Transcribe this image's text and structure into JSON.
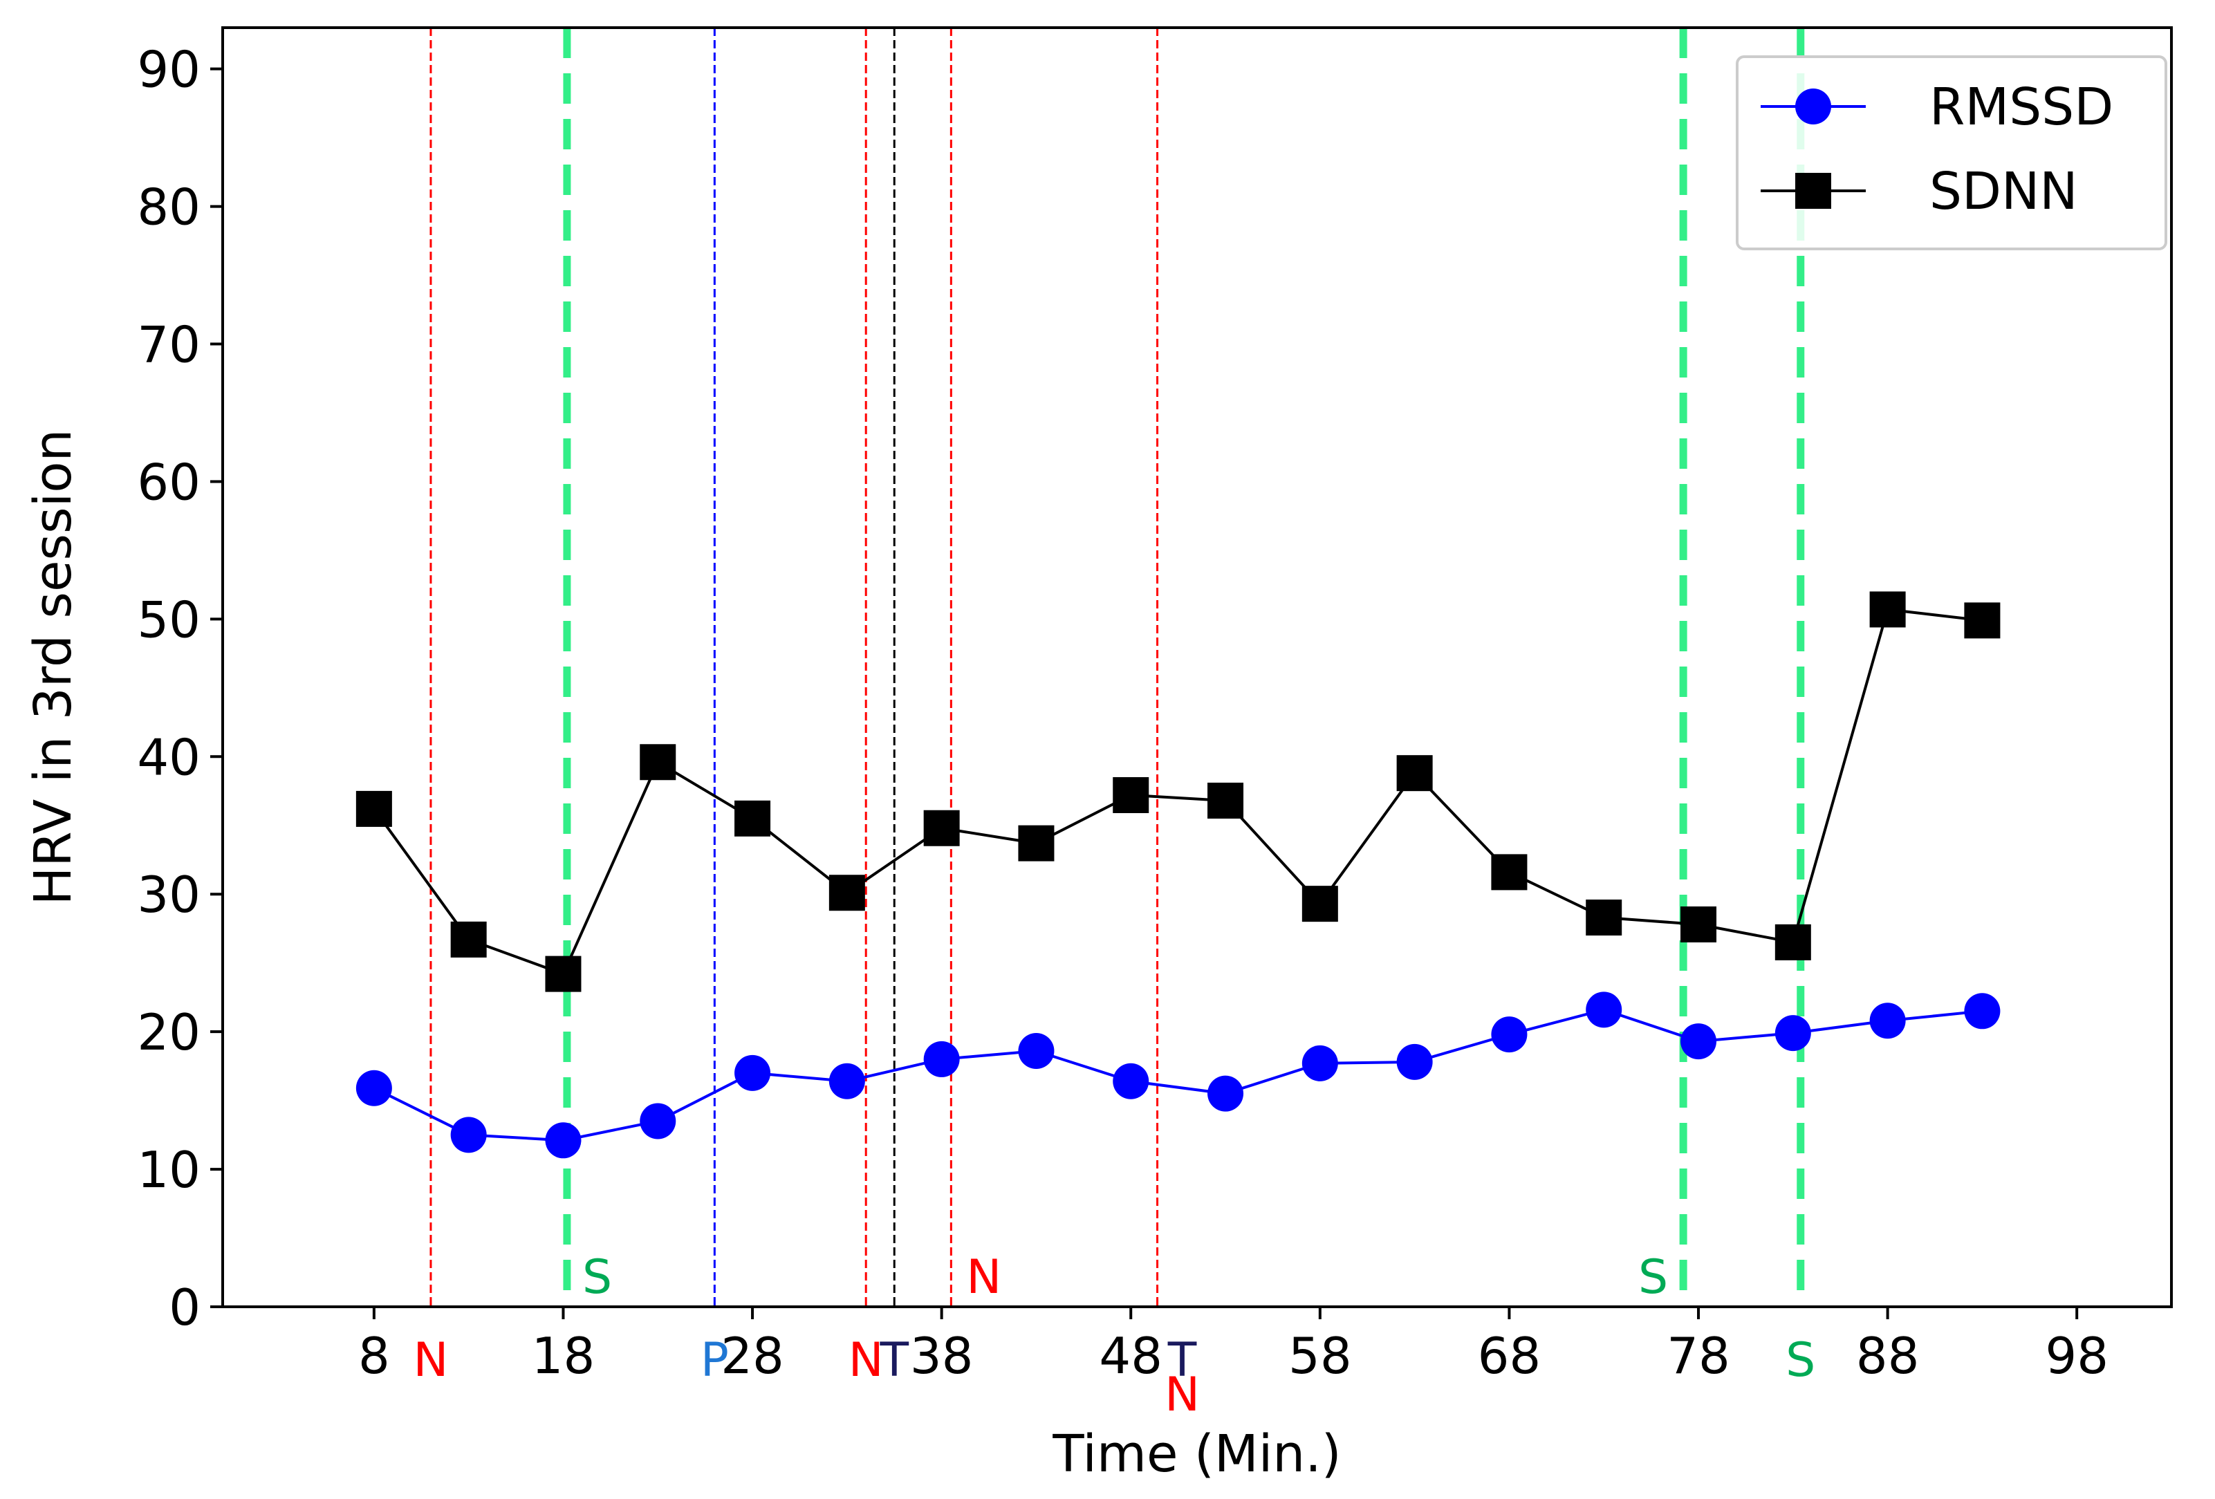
{
  "chart_data": {
    "type": "line",
    "xlabel": "Time (Min.)",
    "ylabel": "HRV in 3rd session",
    "xlim": [
      0,
      103
    ],
    "ylim": [
      0,
      93
    ],
    "xticks": [
      8,
      18,
      28,
      38,
      48,
      58,
      68,
      78,
      88,
      98
    ],
    "yticks": [
      0,
      10,
      20,
      30,
      40,
      50,
      60,
      70,
      80,
      90
    ],
    "legend_position": "top-right",
    "grid": false,
    "series": [
      {
        "name": "RMSSD",
        "color": "#0000ff",
        "marker": "circle",
        "x": [
          8,
          13,
          18,
          23,
          28,
          33,
          38,
          43,
          48,
          53,
          58,
          63,
          68,
          73,
          78,
          83,
          88,
          93
        ],
        "y": [
          15.9,
          12.5,
          12.1,
          13.5,
          17.0,
          16.4,
          18.0,
          18.6,
          16.4,
          15.5,
          17.7,
          17.8,
          19.8,
          21.6,
          19.3,
          19.9,
          20.8,
          21.5
        ]
      },
      {
        "name": "SDNN",
        "color": "#000000",
        "marker": "square",
        "x": [
          8,
          13,
          18,
          23,
          28,
          33,
          38,
          43,
          48,
          53,
          58,
          63,
          68,
          73,
          78,
          83,
          88,
          93
        ],
        "y": [
          36.2,
          26.7,
          24.2,
          39.6,
          35.5,
          30.1,
          34.8,
          33.7,
          37.2,
          36.8,
          29.3,
          38.8,
          31.6,
          28.3,
          27.8,
          26.5,
          50.7,
          49.9
        ]
      }
    ],
    "annotations": [
      {
        "label": "N",
        "x": 11,
        "color": "#ff0000",
        "style": "thin-dashed",
        "label_pos": "below-axis"
      },
      {
        "label": "S",
        "x": 18.2,
        "color": "#33ee88",
        "style": "thick-dashed",
        "label_pos": "inside-right"
      },
      {
        "label": "P",
        "x": 26,
        "color": "#0000ff",
        "style": "thin-dashed",
        "label_pos": "below-axis"
      },
      {
        "label": "N",
        "x": 34,
        "color": "#ff0000",
        "style": "thin-dashed",
        "label_pos": "below-axis"
      },
      {
        "label": "T",
        "x": 35.5,
        "color": "#000000",
        "style": "thin-dashed",
        "label_pos": "below-axis"
      },
      {
        "label": "N",
        "x": 38.5,
        "color": "#ff0000",
        "style": "thin-dashed",
        "label_pos": "inside-right"
      },
      {
        "label": "T",
        "x": 49.4,
        "color": "#ff0000",
        "style": "thin-dashed",
        "label_pos": "below-axis"
      },
      {
        "label": "N",
        "x": 49.4,
        "color": "#ff0000",
        "style": "thin-dashed",
        "label_pos": "below-axis-second"
      },
      {
        "label": "S",
        "x": 77.2,
        "color": "#33ee88",
        "style": "thick-dashed",
        "label_pos": "inside-left"
      },
      {
        "label": "S",
        "x": 83.4,
        "color": "#33ee88",
        "style": "thick-dashed",
        "label_pos": "below-axis"
      }
    ],
    "annotation_label_colors": {
      "N": "#ff0000",
      "S": "#00aa55",
      "P": "#1f77d4",
      "T": "#1a1a5e"
    }
  }
}
